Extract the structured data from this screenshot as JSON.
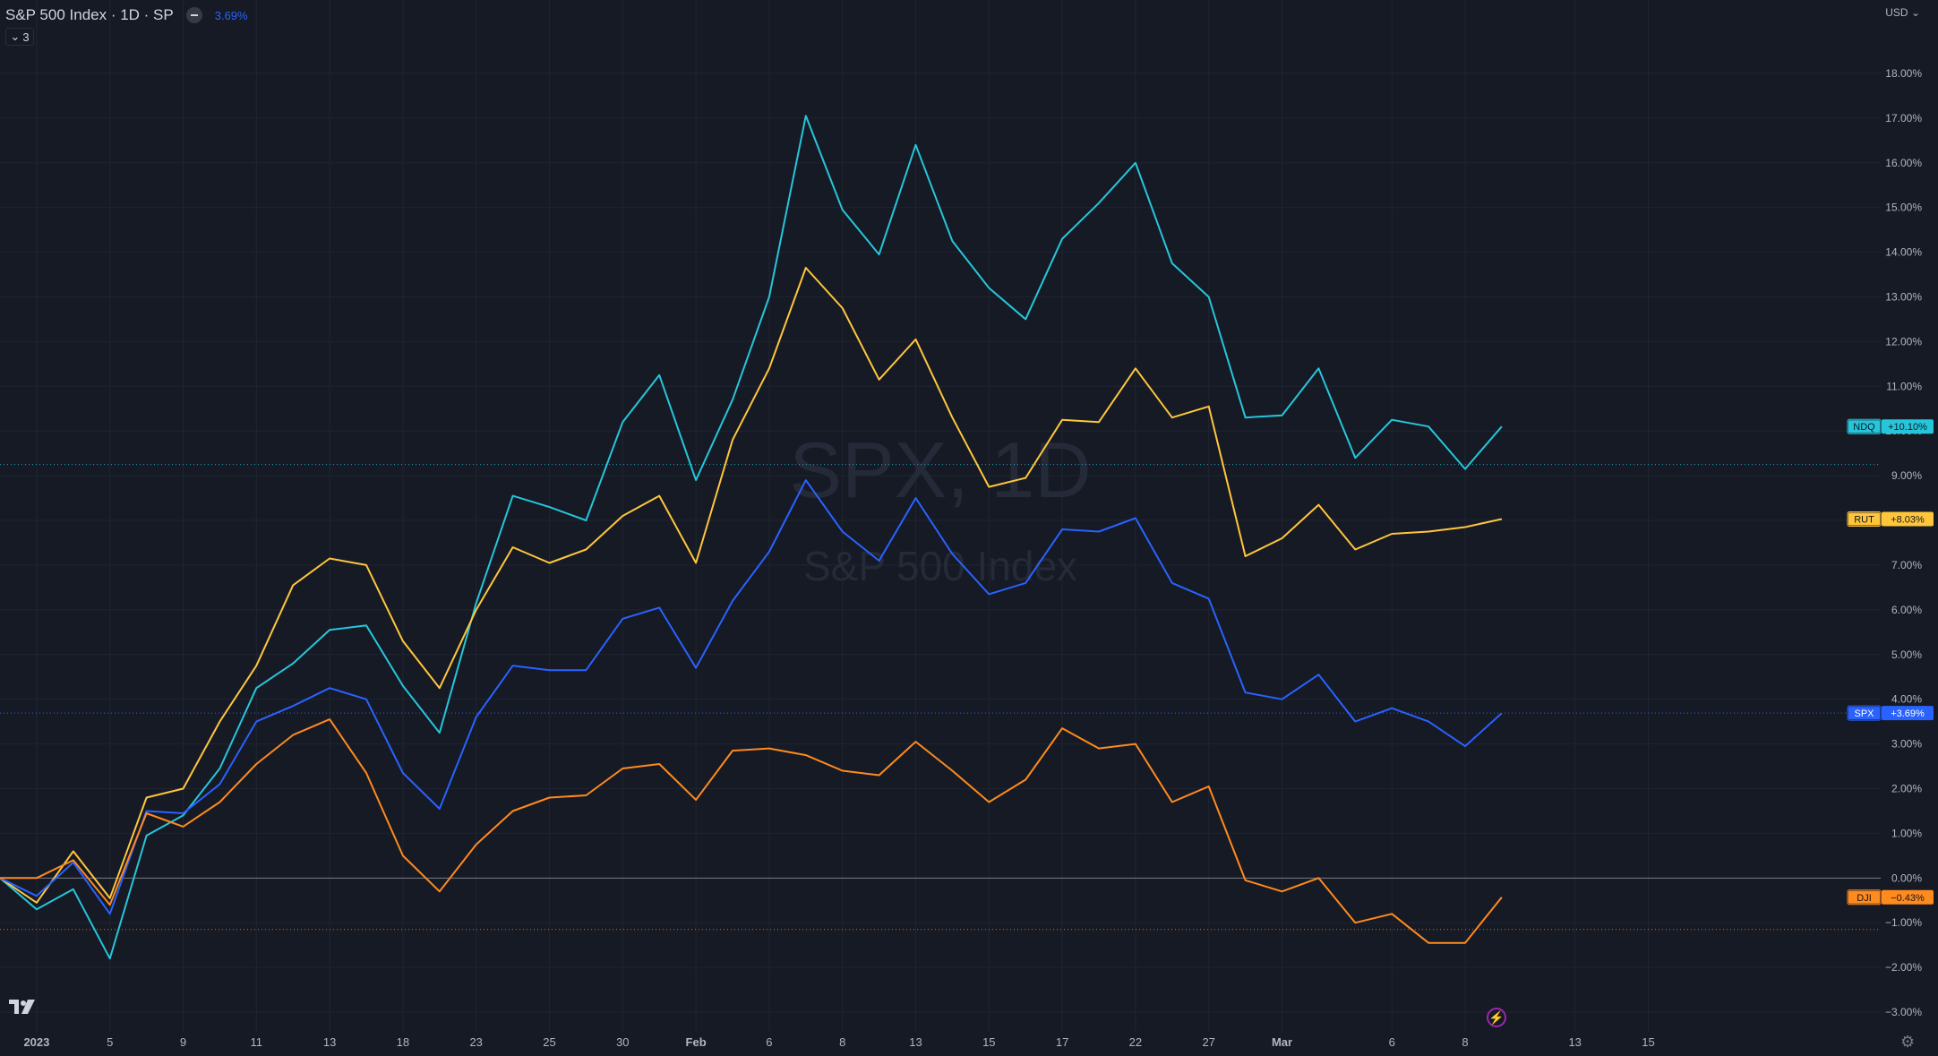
{
  "header": {
    "title": "S&P 500 Index · 1D · SP",
    "change": "3.69%",
    "indicator_count": "3",
    "currency": "USD"
  },
  "watermark": {
    "symbol": "SPX, 1D",
    "name": "S&P 500 Index"
  },
  "colors": {
    "background": "#161a25",
    "grid": "#202431",
    "text": "#b2b5be",
    "spx": "#2962ff",
    "ndq": "#26c6da",
    "rut": "#ffc63c",
    "dji": "#ff8a1e"
  },
  "icons": {
    "logo": "tradingview-logo-icon",
    "lightning": "lightning-icon",
    "settings": "gear-icon"
  },
  "chart_data": {
    "type": "line",
    "y_unit": "%",
    "ylim": [
      -3.6,
      18.8
    ],
    "y_ticks": [
      "18.00%",
      "17.00%",
      "16.00%",
      "15.00%",
      "14.00%",
      "13.00%",
      "12.00%",
      "11.00%",
      "10.00%",
      "9.00%",
      "8.00%",
      "7.00%",
      "6.00%",
      "5.00%",
      "4.00%",
      "3.00%",
      "2.00%",
      "1.00%",
      "0.00%",
      "−1.00%",
      "−2.00%",
      "−3.00%"
    ],
    "y_tick_values": [
      18,
      17,
      16,
      15,
      14,
      13,
      12,
      11,
      10,
      9,
      8,
      7,
      6,
      5,
      4,
      3,
      2,
      1,
      0,
      -1,
      -2,
      -3
    ],
    "x_dates": [
      "2022-12-30",
      "2023-01-03",
      "2023-01-04",
      "2023-01-05",
      "2023-01-06",
      "2023-01-09",
      "2023-01-10",
      "2023-01-11",
      "2023-01-12",
      "2023-01-13",
      "2023-01-17",
      "2023-01-18",
      "2023-01-19",
      "2023-01-20",
      "2023-01-23",
      "2023-01-24",
      "2023-01-25",
      "2023-01-26",
      "2023-01-27",
      "2023-01-30",
      "2023-01-31",
      "2023-02-01",
      "2023-02-02",
      "2023-02-03",
      "2023-02-06",
      "2023-02-07",
      "2023-02-08",
      "2023-02-09",
      "2023-02-10",
      "2023-02-13",
      "2023-02-14",
      "2023-02-15",
      "2023-02-16",
      "2023-02-17",
      "2023-02-21",
      "2023-02-22",
      "2023-02-23",
      "2023-02-24",
      "2023-02-27",
      "2023-02-28",
      "2023-03-01",
      "2023-03-02"
    ],
    "x_ticks": [
      {
        "label": "2023",
        "date": "2023-01-03"
      },
      {
        "label": "5",
        "date": "2023-01-05"
      },
      {
        "label": "9",
        "date": "2023-01-09"
      },
      {
        "label": "11",
        "date": "2023-01-11"
      },
      {
        "label": "13",
        "date": "2023-01-13"
      },
      {
        "label": "18",
        "date": "2023-01-18"
      },
      {
        "label": "23",
        "date": "2023-01-23"
      },
      {
        "label": "25",
        "date": "2023-01-25"
      },
      {
        "label": "30",
        "date": "2023-01-30"
      },
      {
        "label": "Feb",
        "date": "2023-02-01"
      },
      {
        "label": "6",
        "date": "2023-02-06"
      },
      {
        "label": "8",
        "date": "2023-02-08"
      },
      {
        "label": "13",
        "date": "2023-02-13"
      },
      {
        "label": "15",
        "date": "2023-02-15"
      },
      {
        "label": "17",
        "date": "2023-02-17"
      },
      {
        "label": "22",
        "date": "2023-02-22"
      },
      {
        "label": "27",
        "date": "2023-02-27"
      },
      {
        "label": "Mar",
        "date": "2023-03-01"
      },
      {
        "label": "6",
        "date": "2023-03-06"
      },
      {
        "label": "8",
        "date": "2023-03-08"
      },
      {
        "label": "13",
        "date": "2023-03-13"
      },
      {
        "label": "15",
        "date": "2023-03-15"
      }
    ],
    "x_tick_slots": [
      1,
      3,
      5,
      7,
      9,
      11,
      13,
      15,
      17,
      19,
      21,
      23,
      25,
      27,
      29,
      31,
      33,
      35,
      38,
      40,
      43,
      45
    ],
    "series": [
      {
        "name": "NDQ",
        "key": "ndq",
        "label": "+10.10%",
        "values": [
          0,
          -0.7,
          -0.25,
          -1.8,
          0.95,
          1.4,
          2.45,
          4.25,
          4.8,
          5.55,
          5.65,
          4.3,
          3.25,
          6.15,
          8.55,
          8.3,
          8.0,
          10.2,
          11.25,
          8.9,
          10.7,
          13.0,
          17.05,
          14.95,
          13.95,
          16.4,
          14.25,
          13.2,
          12.5,
          14.3,
          15.1,
          16.0,
          13.75,
          13.0,
          10.3,
          10.35,
          11.4,
          9.4,
          10.25,
          10.1,
          9.15,
          10.1
        ]
      },
      {
        "name": "RUT",
        "key": "rut",
        "label": "+8.03%",
        "values": [
          0,
          -0.55,
          0.6,
          -0.45,
          1.8,
          2.0,
          3.5,
          4.75,
          6.55,
          7.15,
          7.0,
          5.3,
          4.25,
          6.0,
          7.4,
          7.05,
          7.35,
          8.1,
          8.55,
          7.05,
          9.8,
          11.4,
          13.65,
          12.75,
          11.15,
          12.05,
          10.3,
          8.75,
          8.95,
          10.25,
          10.2,
          11.4,
          10.3,
          10.55,
          7.2,
          7.6,
          8.35,
          7.35,
          7.7,
          7.75,
          7.85,
          8.03
        ]
      },
      {
        "name": "SPX",
        "key": "spx",
        "label": "+3.69%",
        "values": [
          0,
          -0.4,
          0.35,
          -0.8,
          1.5,
          1.45,
          2.1,
          3.5,
          3.85,
          4.25,
          4.0,
          2.35,
          1.55,
          3.6,
          4.75,
          4.65,
          4.65,
          5.8,
          6.05,
          4.7,
          6.2,
          7.3,
          8.9,
          7.75,
          7.1,
          8.5,
          7.25,
          6.35,
          6.6,
          7.8,
          7.75,
          8.05,
          6.6,
          6.25,
          4.15,
          4.0,
          4.55,
          3.5,
          3.8,
          3.5,
          2.95,
          3.69
        ]
      },
      {
        "name": "DJI",
        "key": "dji",
        "label": "−0.43%",
        "values": [
          0,
          0,
          0.4,
          -0.6,
          1.45,
          1.15,
          1.7,
          2.55,
          3.2,
          3.55,
          2.35,
          0.5,
          -0.3,
          0.75,
          1.5,
          1.8,
          1.85,
          2.45,
          2.55,
          1.75,
          2.85,
          2.9,
          2.75,
          2.4,
          2.3,
          3.05,
          2.4,
          1.7,
          2.2,
          3.35,
          2.9,
          3.0,
          1.7,
          2.05,
          -0.05,
          -0.3,
          0.0,
          -1.0,
          -0.8,
          -1.45,
          -1.45,
          -0.43
        ]
      }
    ],
    "price_lines": [
      {
        "key": "ndq",
        "value": 9.25
      },
      {
        "key": "dji",
        "value": -1.15
      }
    ]
  }
}
